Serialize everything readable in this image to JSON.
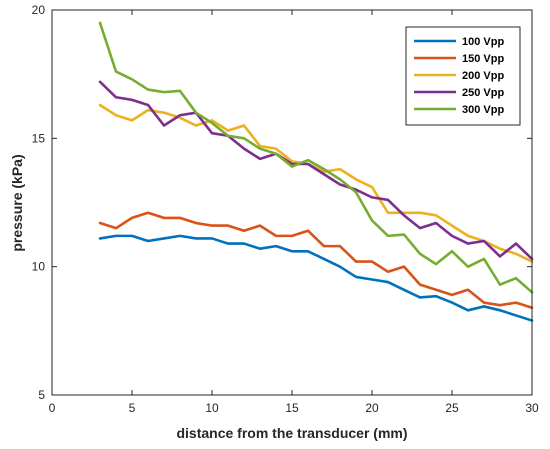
{
  "chart_data": {
    "type": "line",
    "title": "",
    "xlabel": "distance from the transducer (mm)",
    "ylabel": "pressure (kPa)",
    "xlim": [
      0,
      30
    ],
    "ylim": [
      5,
      20
    ],
    "xticks": [
      0,
      5,
      10,
      15,
      20,
      25,
      30
    ],
    "yticks": [
      5,
      10,
      15,
      20
    ],
    "grid": false,
    "legend_position": "top-right",
    "x": [
      3,
      4,
      5,
      6,
      7,
      8,
      9,
      10,
      11,
      12,
      13,
      14,
      15,
      16,
      17,
      18,
      19,
      20,
      21,
      22,
      23,
      24,
      25,
      26,
      27,
      28,
      29,
      30
    ],
    "series": [
      {
        "name": "100 Vpp",
        "color": "#0072BD",
        "values": [
          11.1,
          11.2,
          11.2,
          11.0,
          11.1,
          11.2,
          11.1,
          11.1,
          10.9,
          10.9,
          10.7,
          10.8,
          10.6,
          10.6,
          10.3,
          10.0,
          9.6,
          9.5,
          9.4,
          9.1,
          8.8,
          8.85,
          8.6,
          8.3,
          8.45,
          8.3,
          8.1,
          7.9
        ]
      },
      {
        "name": "150 Vpp",
        "color": "#D95319",
        "values": [
          11.7,
          11.5,
          11.9,
          12.1,
          11.9,
          11.9,
          11.7,
          11.6,
          11.6,
          11.4,
          11.6,
          11.2,
          11.2,
          11.4,
          10.8,
          10.8,
          10.2,
          10.2,
          9.8,
          10.0,
          9.3,
          9.1,
          8.9,
          9.1,
          8.6,
          8.5,
          8.6,
          8.4
        ]
      },
      {
        "name": "200 Vpp",
        "color": "#EDB120",
        "values": [
          16.3,
          15.9,
          15.7,
          16.1,
          16.0,
          15.8,
          15.5,
          15.7,
          15.3,
          15.5,
          14.7,
          14.6,
          14.1,
          14.0,
          13.7,
          13.8,
          13.4,
          13.1,
          12.1,
          12.1,
          12.1,
          12.0,
          11.6,
          11.2,
          11.0,
          10.7,
          10.5,
          10.2
        ]
      },
      {
        "name": "250 Vpp",
        "color": "#7E2F8E",
        "values": [
          17.2,
          16.6,
          16.5,
          16.3,
          15.5,
          15.9,
          16.0,
          15.2,
          15.1,
          14.6,
          14.2,
          14.4,
          14.0,
          14.0,
          13.6,
          13.2,
          13.0,
          12.7,
          12.6,
          12.0,
          11.5,
          11.7,
          11.2,
          10.9,
          11.0,
          10.4,
          10.9,
          10.3
        ]
      },
      {
        "name": "300 Vpp",
        "color": "#77AC30",
        "values": [
          19.5,
          17.6,
          17.3,
          16.9,
          16.8,
          16.85,
          16.0,
          15.6,
          15.1,
          15.0,
          14.6,
          14.4,
          13.9,
          14.15,
          13.8,
          13.4,
          12.9,
          11.8,
          11.2,
          11.25,
          10.5,
          10.1,
          10.6,
          10.0,
          10.3,
          9.3,
          9.55,
          9.0
        ]
      }
    ]
  }
}
